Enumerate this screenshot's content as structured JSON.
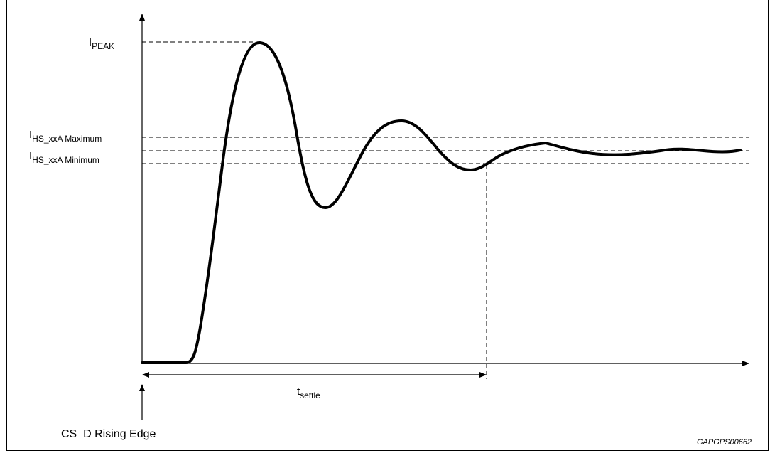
{
  "diagram": {
    "type": "current settling waveform",
    "curve_shape": "damped oscillation: flat baseline, sharp rise to peak, decaying ringing, settling within limit band",
    "labels": {
      "i_peak": {
        "main": "I",
        "sub": "PEAK"
      },
      "i_max": {
        "main": "I",
        "sub": "HS_xxA Maximum"
      },
      "i_min": {
        "main": "I",
        "sub": "HS_xxA Minimum"
      },
      "t_settle": {
        "main": "t",
        "sub": "settle"
      },
      "trigger": "CS_D Rising Edge",
      "figure_id": "GAPGPS00662"
    },
    "reference_lines": [
      "I PEAK",
      "I HS_xxA Maximum",
      "I HS_xxA Minimum"
    ],
    "styles": {
      "stroke_color": "#000000",
      "background": "#ffffff"
    }
  }
}
